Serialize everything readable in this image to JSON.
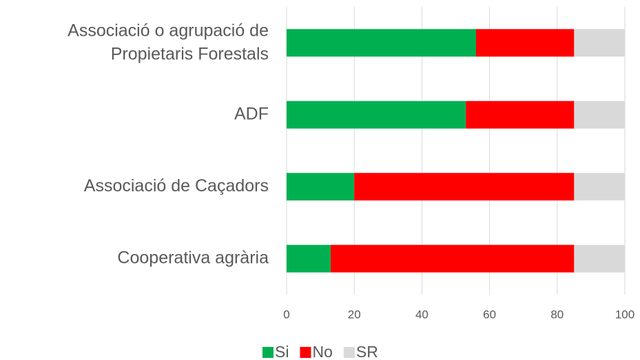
{
  "chart_data": {
    "type": "stacked_bar_horizontal",
    "categories": [
      "Associació o agrupació de\nPropietaris Forestals",
      "ADF",
      "Associació de Caçadors",
      "Cooperativa agrària"
    ],
    "series": [
      {
        "name": "Si",
        "color": "#00b050",
        "values": [
          56,
          53,
          20,
          13
        ]
      },
      {
        "name": "No",
        "color": "#ff0000",
        "values": [
          29,
          32,
          65,
          72
        ]
      },
      {
        "name": "SR",
        "color": "#d9d9d9",
        "values": [
          15,
          15,
          15,
          15
        ]
      }
    ],
    "xlim": [
      0,
      100
    ],
    "xticks": [
      0,
      20,
      40,
      60,
      80,
      100
    ],
    "grid": true,
    "legend": "bottom"
  }
}
